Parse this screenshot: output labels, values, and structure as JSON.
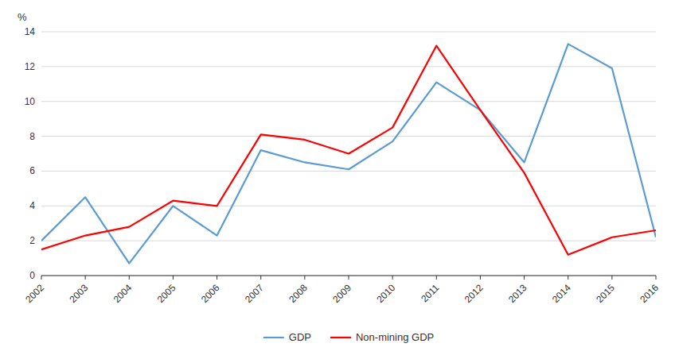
{
  "chart_data": {
    "type": "line",
    "y_label": "%",
    "x": [
      2002,
      2003,
      2004,
      2005,
      2006,
      2007,
      2008,
      2009,
      2010,
      2011,
      2012,
      2013,
      2014,
      2015,
      2016
    ],
    "xlim": [
      2002,
      2016
    ],
    "xticks": [
      2002,
      2003,
      2004,
      2005,
      2006,
      2007,
      2008,
      2009,
      2010,
      2011,
      2012,
      2013,
      2014,
      2015,
      2016
    ],
    "series": [
      {
        "name": "GDP",
        "color": "#5B9BD5",
        "values": [
          2.0,
          4.5,
          0.7,
          4.0,
          2.3,
          7.2,
          6.5,
          6.1,
          7.7,
          11.1,
          9.5,
          6.5,
          13.3,
          11.9,
          2.2
        ]
      },
      {
        "name": "Non-mining GDP",
        "color": "#FF0000",
        "values": [
          1.5,
          2.3,
          2.8,
          4.3,
          4.0,
          8.1,
          7.8,
          7.0,
          8.5,
          13.2,
          9.5,
          5.9,
          1.2,
          2.2,
          2.6
        ]
      }
    ],
    "ylim": [
      0,
      14
    ],
    "yticks": [
      0,
      2,
      4,
      6,
      8,
      10,
      12,
      14
    ],
    "grid": true,
    "legend": "bottom"
  }
}
